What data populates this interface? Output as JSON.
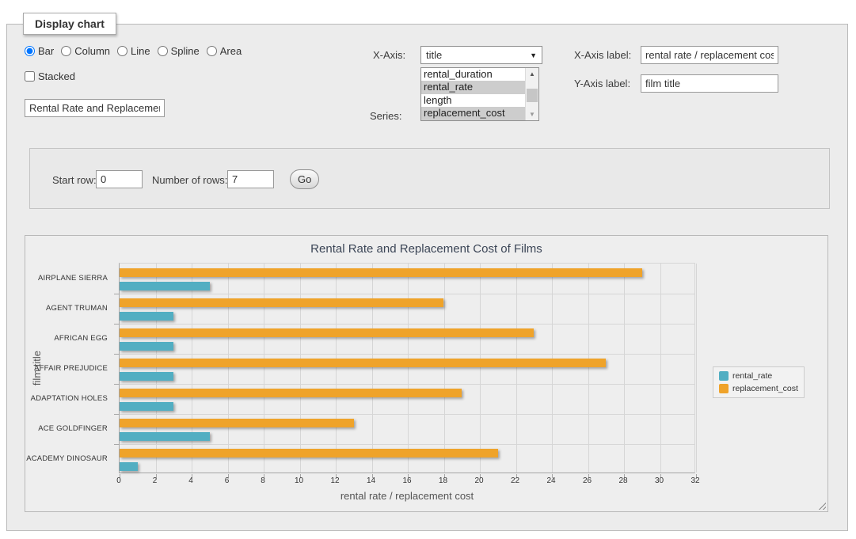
{
  "fieldset": {
    "legend": "Display chart"
  },
  "chart_type": {
    "options": [
      "Bar",
      "Column",
      "Line",
      "Spline",
      "Area"
    ],
    "selected": "Bar",
    "stacked_label": "Stacked",
    "stacked_checked": false
  },
  "chart_title_input": {
    "value": "Rental Rate and Replacemer"
  },
  "x_axis_select": {
    "label": "X-Axis:",
    "value": "title"
  },
  "series_select": {
    "label": "Series:",
    "options": [
      {
        "label": "rental_duration",
        "selected": false
      },
      {
        "label": "rental_rate",
        "selected": true
      },
      {
        "label": "length",
        "selected": false
      },
      {
        "label": "replacement_cost",
        "selected": true
      }
    ]
  },
  "x_axis_label_input": {
    "label": "X-Axis label:",
    "value": "rental rate / replacement cost"
  },
  "y_axis_label_input": {
    "label": "Y-Axis label:",
    "value": "film title"
  },
  "row_controls": {
    "start_row_label": "Start row:",
    "start_row_value": "0",
    "num_rows_label": "Number of rows:",
    "num_rows_value": "7",
    "go_label": "Go"
  },
  "chart_data": {
    "type": "bar",
    "title": "Rental Rate and Replacement Cost of Films",
    "xlabel": "rental rate / replacement cost",
    "ylabel": "film title",
    "categories": [
      "AIRPLANE SIERRA",
      "AGENT TRUMAN",
      "AFRICAN EGG",
      "AFFAIR PREJUDICE",
      "ADAPTATION HOLES",
      "ACE GOLDFINGER",
      "ACADEMY DINOSAUR"
    ],
    "series": [
      {
        "name": "rental_rate",
        "color": "#52AEC2",
        "values": [
          4.99,
          2.99,
          2.99,
          2.99,
          2.99,
          4.99,
          0.99
        ]
      },
      {
        "name": "replacement_cost",
        "color": "#EFA32A",
        "values": [
          28.99,
          17.99,
          22.99,
          26.99,
          18.99,
          12.99,
          20.99
        ]
      }
    ],
    "bar_order_top_to_bottom": [
      "replacement_cost",
      "rental_rate"
    ],
    "xlim": [
      0,
      32
    ],
    "x_tick_step": 2,
    "grid": true,
    "legend_position": "right"
  }
}
